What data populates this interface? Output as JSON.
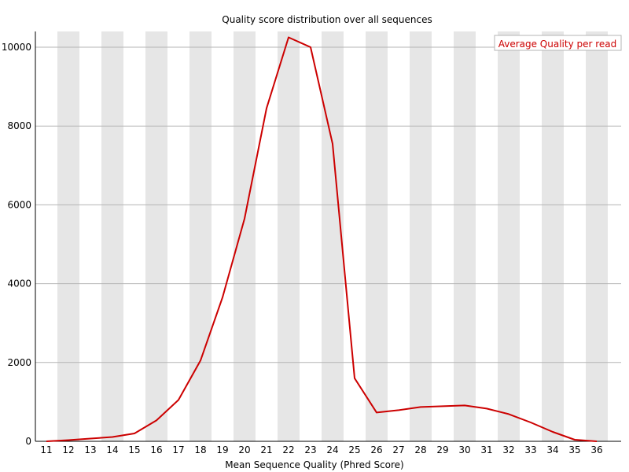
{
  "chart_data": {
    "type": "line",
    "title": "Quality score distribution over all sequences",
    "xlabel": "Mean Sequence Quality (Phred Score)",
    "ylabel": "",
    "x": [
      11,
      12,
      13,
      14,
      15,
      16,
      17,
      18,
      19,
      20,
      21,
      22,
      23,
      24,
      25,
      26,
      27,
      28,
      29,
      30,
      31,
      32,
      33,
      34,
      35,
      36
    ],
    "y_ticks": [
      0,
      2000,
      4000,
      6000,
      8000,
      10000
    ],
    "ylim": [
      0,
      10400
    ],
    "grid": true,
    "alternating_column_shading": true,
    "legend_position": "top-right",
    "series": [
      {
        "name": "Average Quality per read",
        "color": "#cc0000",
        "values": [
          0,
          30,
          70,
          110,
          200,
          530,
          1050,
          2050,
          3650,
          5650,
          8450,
          10250,
          10000,
          7550,
          1600,
          730,
          790,
          870,
          890,
          910,
          830,
          690,
          480,
          240,
          40,
          0
        ]
      }
    ]
  },
  "colors": {
    "stripe": "#e6e6e6",
    "gridline": "#b4b4b4",
    "axis": "#000000",
    "line": "#cc0000",
    "legend_border": "#b4b4b4"
  }
}
